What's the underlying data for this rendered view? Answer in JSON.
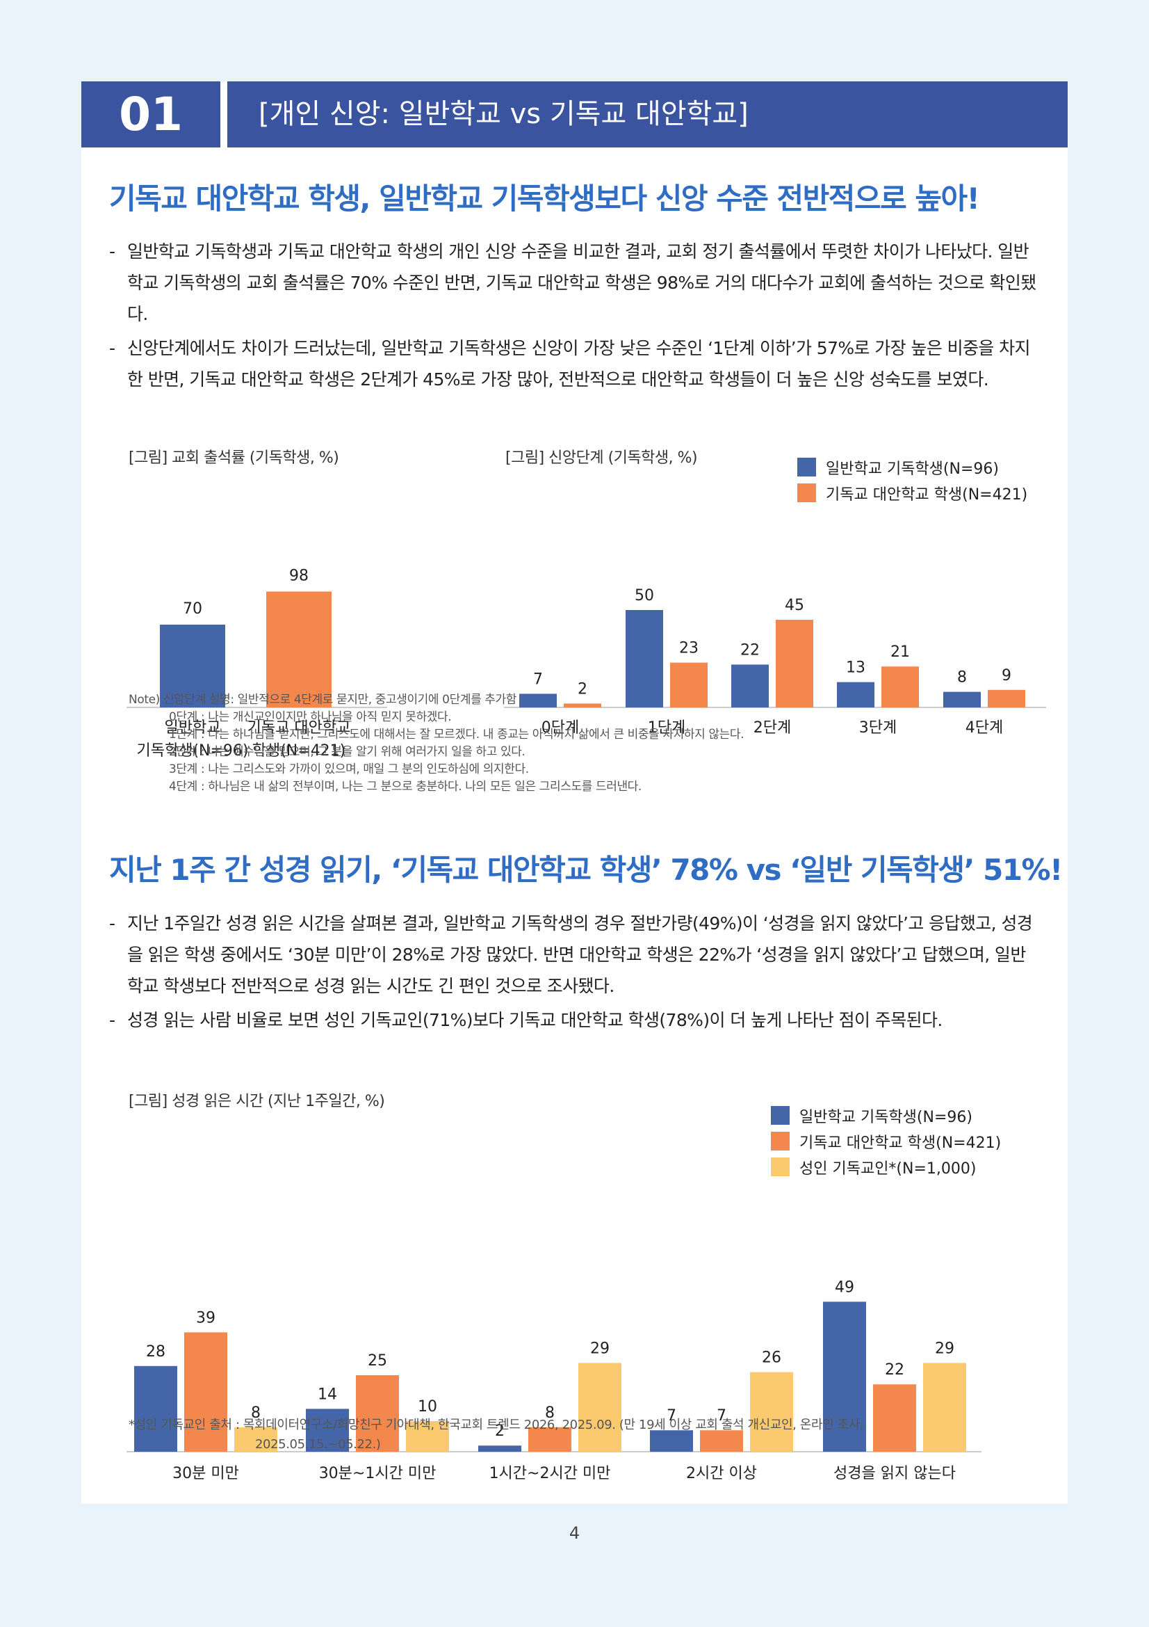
{
  "header": {
    "number": "01",
    "title": "[개인 신앙: 일반학교 vs 기독교 대안학교]"
  },
  "section1": {
    "headline": "기독교 대안학교 학생, 일반학교 기독학생보다 신앙 수준 전반적으로 높아!",
    "bullets": [
      "일반학교 기독학생과 기독교 대안학교 학생의 개인 신앙 수준을 비교한 결과, 교회 정기 출석률에서 뚜렷한 차이가 나타났다. 일반학교 기독학생의 교회 출석률은 70% 수준인 반면, 기독교 대안학교 학생은 98%로 거의 대다수가 교회에 출석하는 것으로 확인됐다.",
      "신앙단계에서도 차이가 드러났는데, 일반학교 기독학생은 신앙이 가장 낮은 수준인 ‘1단계 이하’가 57%로 가장 높은 비중을 차지한 반면, 기독교 대안학교 학생은 2단계가 45%로 가장 많아, 전반적으로 대안학교 학생들이 더 높은 신앙 성숙도를 보였다."
    ]
  },
  "figure1": {
    "title": "[그림] 교회 출석률 (기독학생, %)"
  },
  "figure2": {
    "title": "[그림] 신앙단계 (기독학생, %)",
    "legend": [
      "일반학교 기독학생(N=96)",
      "기독교 대안학교 학생(N=421)"
    ]
  },
  "note": {
    "lines": [
      "Note) 신앙단계 설명: 일반적으로 4단계로 묻지만, 중고생이기에 0단계를 추가함",
      "0단계 : 나는 개신교인이지만 하나님을 아직 믿지 못하겠다.",
      "1단계 : 나는 하나님을 믿지만, 그리스도에 대해서는 잘 모르겠다. 내 종교는 아직까지 삶에서 큰 비중을 차지하지 않는다.",
      "2단계 : 나는 예수님을 믿으며, 그 분을 알기 위해 여러가지 일을 하고 있다.",
      "3단계 : 나는 그리스도와 가까이 있으며, 매일 그 분의 인도하심에 의지한다.",
      "4단계 : 하나님은 내 삶의 전부이며, 나는 그 분으로 충분하다. 나의 모든 일은 그리스도를 드러낸다."
    ]
  },
  "section2": {
    "headline": "지난 1주 간 성경 읽기, ‘기독교 대안학교 학생’ 78% vs ‘일반 기독학생’ 51%!",
    "bullets": [
      "지난 1주일간 성경 읽은 시간을 살펴본 결과, 일반학교 기독학생의 경우 절반가량(49%)이 ‘성경을 읽지 않았다’고 응답했고, 성경을 읽은 학생 중에서도 ‘30분 미만’이 28%로 가장 많았다. 반면 대안학교 학생은 22%가 ‘성경을 읽지 않았다’고 답했으며, 일반학교 학생보다 전반적으로 성경 읽는 시간도 긴 편인 것으로 조사됐다.",
      "성경 읽는 사람 비율로 보면 성인 기독교인(71%)보다 기독교 대안학교 학생(78%)이 더 높게 나타난 점이 주목된다."
    ]
  },
  "figure3": {
    "title": "[그림] 성경 읽은 시간 (지난 1주일간, %)",
    "legend": [
      "일반학교 기독학생(N=96)",
      "기독교 대안학교 학생(N=421)",
      "성인 기독교인*(N=1,000)"
    ]
  },
  "source": {
    "line1": "*성인 기독교인 출처 : 목회데이터연구소/희망친구 기아대책, 한국교회 트렌드 2026, 2025.09. (만 19세 이상 교회 출석 개신교인, 온라인 조사,",
    "line2": "2025.05.15.~05.22.)"
  },
  "page_number": "4",
  "colors": {
    "blue": "#4466a8",
    "orange": "#f4874b",
    "yellow": "#fbc96e",
    "header": "#3a54a0",
    "headline": "#2f6cc4"
  },
  "chart_data": [
    {
      "type": "bar",
      "title": "[그림] 교회 출석률 (기독학생, %)",
      "categories": [
        "일반학교 기독학생(N=96)",
        "기독교 대안학교 학생(N=421)"
      ],
      "category_lines": [
        [
          "일반학교",
          "기독학생(N=96)"
        ],
        [
          "기독교 대안학교",
          "학생(N=421)"
        ]
      ],
      "values": [
        70,
        98
      ],
      "colors": [
        "#4466a8",
        "#f4874b"
      ],
      "ylim": [
        0,
        100
      ]
    },
    {
      "type": "bar",
      "title": "[그림] 신앙단계 (기독학생, %)",
      "categories": [
        "0단계",
        "1단계",
        "2단계",
        "3단계",
        "4단계"
      ],
      "series": [
        {
          "name": "일반학교 기독학생(N=96)",
          "values": [
            7,
            50,
            22,
            13,
            8
          ],
          "color": "#4466a8"
        },
        {
          "name": "기독교 대안학교 학생(N=421)",
          "values": [
            2,
            23,
            45,
            21,
            9
          ],
          "color": "#f4874b"
        }
      ],
      "ylim": [
        0,
        60
      ],
      "legend": "top-right"
    },
    {
      "type": "bar",
      "title": "[그림] 성경 읽은 시간 (지난 1주일간, %)",
      "categories": [
        "30분 미만",
        "30분~1시간 미만",
        "1시간~2시간 미만",
        "2시간 이상",
        "성경을 읽지 않는다"
      ],
      "series": [
        {
          "name": "일반학교 기독학생(N=96)",
          "values": [
            28,
            14,
            2,
            7,
            49
          ],
          "color": "#4466a8"
        },
        {
          "name": "기독교 대안학교 학생(N=421)",
          "values": [
            39,
            25,
            8,
            7,
            22
          ],
          "color": "#f4874b"
        },
        {
          "name": "성인 기독교인*(N=1,000)",
          "values": [
            8,
            10,
            29,
            26,
            29
          ],
          "color": "#fbc96e"
        }
      ],
      "ylim": [
        0,
        60
      ],
      "legend": "top-right"
    }
  ]
}
